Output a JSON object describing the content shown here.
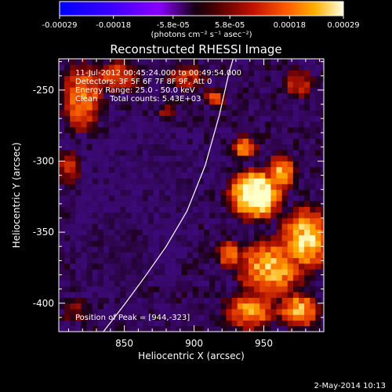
{
  "chart_data": {
    "type": "heatmap",
    "title": "Reconstructed RHESSI Image",
    "xlabel": "Heliocentric X (arcsec)",
    "ylabel": "Heliocentric Y (arcsec)",
    "xlim": [
      803,
      993
    ],
    "ylim": [
      -420,
      -228
    ],
    "xticks": [
      850,
      900,
      950
    ],
    "yticks": [
      -250,
      -300,
      -350,
      -400
    ],
    "colorbar": {
      "range": [
        -0.00029,
        0.00029
      ],
      "tick_labels": [
        "-0.00029",
        "-0.00018",
        "-5.8e-05",
        "5.8e-05",
        "0.00018",
        "0.00029"
      ],
      "tick_values": [
        -0.00029,
        -0.00018,
        -5.8e-05,
        5.8e-05,
        0.00018,
        0.00029
      ],
      "units": "(photons cm⁻² s⁻¹ asec⁻²)"
    },
    "limb_curve": {
      "color": "#ffffff",
      "points": [
        [
          835,
          -420
        ],
        [
          850,
          -401
        ],
        [
          865,
          -381
        ],
        [
          880,
          -360
        ],
        [
          895,
          -335
        ],
        [
          908,
          -303
        ],
        [
          918,
          -268
        ],
        [
          925,
          -238
        ],
        [
          928,
          -228
        ]
      ]
    },
    "bright_regions": [
      {
        "x": 944,
        "y": -323,
        "rx": 22,
        "ry": 20,
        "level": 1.0
      },
      {
        "x": 962,
        "y": -308,
        "rx": 12,
        "ry": 14,
        "level": 0.8
      },
      {
        "x": 936,
        "y": -290,
        "rx": 10,
        "ry": 9,
        "level": 0.75
      },
      {
        "x": 980,
        "y": -355,
        "rx": 22,
        "ry": 26,
        "level": 0.85
      },
      {
        "x": 955,
        "y": -375,
        "rx": 28,
        "ry": 24,
        "level": 0.8
      },
      {
        "x": 940,
        "y": -405,
        "rx": 22,
        "ry": 16,
        "level": 0.75
      },
      {
        "x": 975,
        "y": -405,
        "rx": 18,
        "ry": 14,
        "level": 0.8
      },
      {
        "x": 925,
        "y": -365,
        "rx": 10,
        "ry": 12,
        "level": 0.7
      },
      {
        "x": 820,
        "y": -255,
        "rx": 18,
        "ry": 28,
        "level": 0.7
      },
      {
        "x": 845,
        "y": -240,
        "rx": 22,
        "ry": 12,
        "level": 0.65
      },
      {
        "x": 810,
        "y": -305,
        "rx": 10,
        "ry": 16,
        "level": 0.55
      },
      {
        "x": 895,
        "y": -240,
        "rx": 18,
        "ry": 12,
        "level": 0.55
      },
      {
        "x": 880,
        "y": -265,
        "rx": 10,
        "ry": 8,
        "level": 0.45
      },
      {
        "x": 915,
        "y": -255,
        "rx": 10,
        "ry": 8,
        "level": 0.6
      },
      {
        "x": 815,
        "y": -405,
        "rx": 12,
        "ry": 12,
        "level": 0.45
      },
      {
        "x": 975,
        "y": -245,
        "rx": 12,
        "ry": 12,
        "level": 0.6
      }
    ],
    "dark_regions": [
      {
        "x": 860,
        "y": -330,
        "rx": 45,
        "ry": 60,
        "level": 0.33
      },
      {
        "x": 885,
        "y": -305,
        "rx": 30,
        "ry": 30,
        "level": 0.36
      },
      {
        "x": 840,
        "y": -370,
        "rx": 30,
        "ry": 30,
        "level": 0.38
      }
    ]
  },
  "annotations": {
    "time": "11-Jul-2012 00:45:24.000 to 00:49:54.000",
    "detectors": "Detectors: 3F 5F 6F 7F 8F 9F, Att 0",
    "energy": "Energy Range: 25.0 - 50.0 keV",
    "clean": "Clean     Total counts: 5.43E+03",
    "peak": "Position of Peak = [944,-323]"
  },
  "footer": {
    "date": "2-May-2014 10:13"
  }
}
